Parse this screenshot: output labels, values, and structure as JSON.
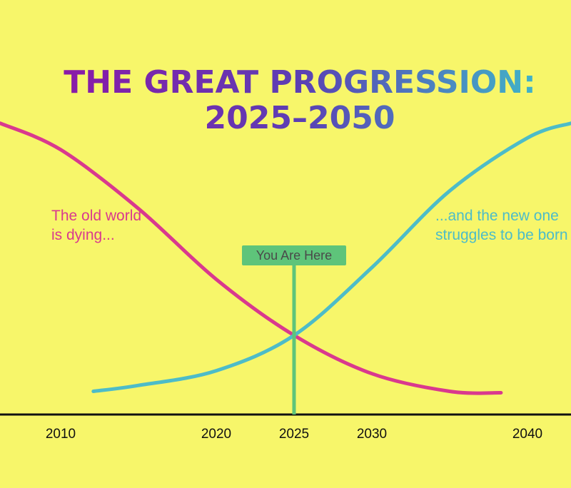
{
  "chart_data": {
    "type": "line",
    "title_line1": "THE GREAT PROGRESSION:",
    "title_line2": "2025–2050",
    "x_ticks": [
      2010,
      2020,
      2025,
      2030,
      2040
    ],
    "xlim": [
      2006.1,
      2042.8
    ],
    "series": [
      {
        "label": "The old world is dying...",
        "color": "#d9398e",
        "x": [
          2006.1,
          2010,
          2015,
          2020,
          2025,
          2030,
          2035,
          2038.3
        ],
        "y": [
          0.95,
          0.86,
          0.66,
          0.42,
          0.23,
          0.1,
          0.04,
          0.035
        ]
      },
      {
        "label": "...and the new one struggles to be born",
        "color": "#4dbcc8",
        "x": [
          2012.1,
          2015,
          2020,
          2025,
          2030,
          2035,
          2040,
          2042.8
        ],
        "y": [
          0.04,
          0.06,
          0.11,
          0.23,
          0.46,
          0.72,
          0.9,
          0.95
        ]
      }
    ],
    "marker": {
      "x": 2025,
      "label": "You Are Here",
      "color": "#5ec47a"
    },
    "annotations": {
      "old_line1": "The old world",
      "old_line2": "is dying...",
      "new_line1": "...and the new one",
      "new_line2": "struggles to be born"
    },
    "colors": {
      "background": "#f7f66a",
      "axis": "#111111",
      "title_gradient": [
        "#8a1aa8",
        "#5b3fb4",
        "#40b4c8"
      ]
    }
  }
}
